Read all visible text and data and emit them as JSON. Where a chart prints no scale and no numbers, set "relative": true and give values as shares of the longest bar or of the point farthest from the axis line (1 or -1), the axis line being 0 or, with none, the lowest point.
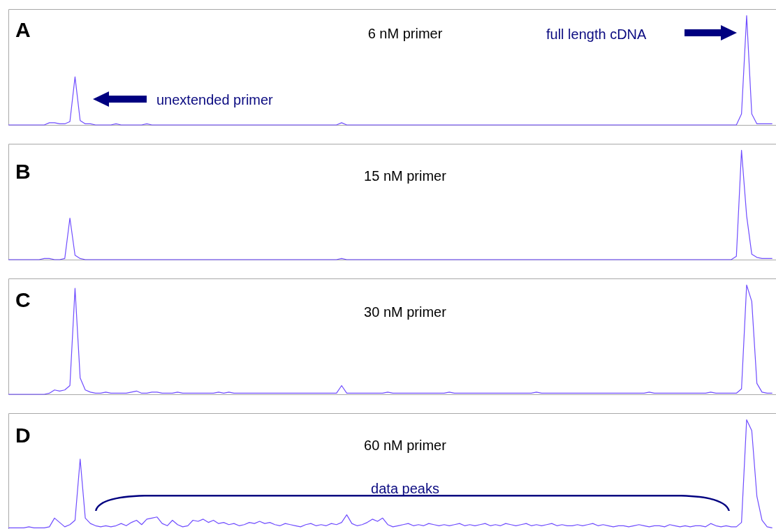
{
  "chart_data": [
    {
      "type": "line",
      "title": "A",
      "subtitle": "6 nM primer",
      "relative": true,
      "tick_labels": false,
      "annotations": [
        "unextended primer",
        "full length cDNA"
      ],
      "categories": [
        null,
        null,
        null,
        null,
        null,
        null,
        null,
        null,
        null,
        null,
        null,
        null,
        null,
        null,
        null,
        null,
        null,
        null,
        null,
        null,
        null,
        null,
        null,
        null,
        null,
        null,
        null,
        null,
        null,
        null,
        null,
        null,
        null,
        null,
        null,
        null,
        null,
        null,
        null,
        null,
        null,
        null,
        null,
        null,
        null,
        null,
        null,
        null,
        null,
        null,
        null,
        null,
        null,
        null,
        null,
        null,
        null,
        null,
        null,
        null,
        null,
        null,
        null,
        null,
        null,
        null,
        null,
        null,
        null,
        null,
        null,
        null,
        null,
        null,
        null,
        null,
        null,
        null,
        null,
        null,
        null,
        null,
        null,
        null,
        null,
        null,
        null,
        null,
        null,
        null,
        null,
        null,
        null,
        null,
        null,
        null,
        null,
        null,
        null,
        null,
        null,
        null,
        null,
        null,
        null,
        null,
        null,
        null,
        null,
        null,
        null,
        null,
        null,
        null,
        null,
        null,
        null,
        null,
        null,
        null,
        null,
        null,
        null,
        null,
        null,
        null,
        null,
        null,
        null,
        null,
        null,
        null,
        null,
        null,
        null,
        null,
        null,
        null,
        null,
        null,
        null,
        null,
        null,
        null,
        null,
        null,
        null,
        null,
        null,
        null
      ],
      "series": [
        {
          "color": "#6f4dff",
          "values": [
            0,
            0,
            0,
            0,
            0,
            0,
            0,
            0,
            0.02,
            0.02,
            0.01,
            0.01,
            0.03,
            0.44,
            0.04,
            0.01,
            0.01,
            0,
            0,
            0,
            0,
            0.01,
            0,
            0,
            0,
            0,
            0,
            0.01,
            0,
            0,
            0,
            0,
            0,
            0,
            0,
            0,
            0,
            0,
            0,
            0,
            0,
            0,
            0,
            0,
            0,
            0,
            0,
            0,
            0,
            0,
            0,
            0,
            0,
            0,
            0,
            0,
            0,
            0,
            0,
            0,
            0,
            0,
            0,
            0,
            0,
            0.02,
            0,
            0,
            0,
            0,
            0,
            0,
            0,
            0,
            0,
            0,
            0,
            0,
            0,
            0,
            0,
            0,
            0,
            0,
            0,
            0,
            0,
            0,
            0,
            0,
            0,
            0,
            0,
            0,
            0,
            0,
            0,
            0,
            0,
            0,
            0,
            0,
            0,
            0,
            0,
            0,
            0,
            0,
            0,
            0,
            0,
            0,
            0,
            0,
            0,
            0,
            0,
            0,
            0,
            0,
            0,
            0,
            0,
            0,
            0,
            0,
            0,
            0,
            0,
            0,
            0,
            0,
            0,
            0,
            0,
            0,
            0,
            0,
            0,
            0,
            0,
            0,
            0,
            0.1,
            1,
            0.1,
            0.01,
            0.01,
            0.01,
            0.01
          ]
        }
      ]
    },
    {
      "type": "line",
      "title": "B",
      "subtitle": "15 nM primer",
      "relative": true,
      "tick_labels": false,
      "categories": [
        null,
        null,
        null,
        null,
        null,
        null,
        null,
        null,
        null,
        null,
        null,
        null,
        null,
        null,
        null,
        null,
        null,
        null,
        null,
        null,
        null,
        null,
        null,
        null,
        null,
        null,
        null,
        null,
        null,
        null,
        null,
        null,
        null,
        null,
        null,
        null,
        null,
        null,
        null,
        null,
        null,
        null,
        null,
        null,
        null,
        null,
        null,
        null,
        null,
        null,
        null,
        null,
        null,
        null,
        null,
        null,
        null,
        null,
        null,
        null,
        null,
        null,
        null,
        null,
        null,
        null,
        null,
        null,
        null,
        null,
        null,
        null,
        null,
        null,
        null,
        null,
        null,
        null,
        null,
        null,
        null,
        null,
        null,
        null,
        null,
        null,
        null,
        null,
        null,
        null,
        null,
        null,
        null,
        null,
        null,
        null,
        null,
        null,
        null,
        null,
        null,
        null,
        null,
        null,
        null,
        null,
        null,
        null,
        null,
        null,
        null,
        null,
        null,
        null,
        null,
        null,
        null,
        null,
        null,
        null,
        null,
        null,
        null,
        null,
        null,
        null,
        null,
        null,
        null,
        null,
        null,
        null,
        null,
        null,
        null,
        null,
        null,
        null,
        null,
        null,
        null,
        null,
        null,
        null,
        null,
        null,
        null,
        null,
        null,
        null
      ],
      "series": [
        {
          "color": "#6f4dff",
          "values": [
            0,
            0,
            0,
            0,
            0,
            0,
            0,
            0.01,
            0.01,
            0,
            0,
            0.01,
            0.38,
            0.04,
            0.01,
            0,
            0,
            0,
            0,
            0,
            0,
            0,
            0,
            0,
            0,
            0,
            0,
            0,
            0,
            0,
            0,
            0,
            0,
            0,
            0,
            0,
            0,
            0,
            0,
            0,
            0,
            0,
            0,
            0,
            0,
            0,
            0,
            0,
            0,
            0,
            0,
            0,
            0,
            0,
            0,
            0,
            0,
            0,
            0,
            0,
            0,
            0,
            0,
            0,
            0,
            0.01,
            0,
            0,
            0,
            0,
            0,
            0,
            0,
            0,
            0,
            0,
            0,
            0,
            0,
            0,
            0,
            0,
            0,
            0,
            0,
            0,
            0,
            0,
            0,
            0,
            0,
            0,
            0,
            0,
            0,
            0,
            0,
            0,
            0,
            0,
            0,
            0,
            0,
            0,
            0,
            0,
            0,
            0,
            0,
            0,
            0,
            0,
            0,
            0,
            0,
            0,
            0,
            0,
            0,
            0,
            0,
            0,
            0,
            0,
            0,
            0,
            0,
            0,
            0,
            0,
            0,
            0,
            0,
            0,
            0,
            0,
            0,
            0,
            0,
            0,
            0,
            0,
            0.03,
            1,
            0.4,
            0.05,
            0.02,
            0.01,
            0.01,
            0.01
          ]
        }
      ]
    },
    {
      "type": "line",
      "title": "C",
      "subtitle": "30 nM primer",
      "relative": true,
      "tick_labels": false,
      "categories": [
        null,
        null,
        null,
        null,
        null,
        null,
        null,
        null,
        null,
        null,
        null,
        null,
        null,
        null,
        null,
        null,
        null,
        null,
        null,
        null,
        null,
        null,
        null,
        null,
        null,
        null,
        null,
        null,
        null,
        null,
        null,
        null,
        null,
        null,
        null,
        null,
        null,
        null,
        null,
        null,
        null,
        null,
        null,
        null,
        null,
        null,
        null,
        null,
        null,
        null,
        null,
        null,
        null,
        null,
        null,
        null,
        null,
        null,
        null,
        null,
        null,
        null,
        null,
        null,
        null,
        null,
        null,
        null,
        null,
        null,
        null,
        null,
        null,
        null,
        null,
        null,
        null,
        null,
        null,
        null,
        null,
        null,
        null,
        null,
        null,
        null,
        null,
        null,
        null,
        null,
        null,
        null,
        null,
        null,
        null,
        null,
        null,
        null,
        null,
        null,
        null,
        null,
        null,
        null,
        null,
        null,
        null,
        null,
        null,
        null,
        null,
        null,
        null,
        null,
        null,
        null,
        null,
        null,
        null,
        null,
        null,
        null,
        null,
        null,
        null,
        null,
        null,
        null,
        null,
        null,
        null,
        null,
        null,
        null,
        null,
        null,
        null,
        null,
        null,
        null,
        null,
        null,
        null,
        null,
        null,
        null,
        null,
        null,
        null,
        null
      ],
      "series": [
        {
          "color": "#6f4dff",
          "values": [
            0,
            0,
            0,
            0,
            0,
            0,
            0,
            0,
            0.01,
            0.04,
            0.03,
            0.04,
            0.08,
            0.97,
            0.15,
            0.04,
            0.02,
            0.01,
            0.01,
            0.02,
            0.01,
            0.01,
            0.01,
            0.01,
            0.02,
            0.03,
            0.01,
            0.01,
            0.02,
            0.02,
            0.01,
            0.01,
            0.01,
            0.02,
            0.01,
            0.01,
            0.01,
            0.01,
            0.01,
            0.01,
            0.01,
            0.02,
            0.01,
            0.02,
            0.01,
            0.01,
            0.01,
            0.01,
            0.01,
            0.01,
            0.01,
            0.01,
            0.01,
            0.01,
            0.01,
            0.01,
            0.01,
            0.01,
            0.01,
            0.01,
            0.01,
            0.01,
            0.01,
            0.01,
            0.01,
            0.08,
            0.01,
            0.01,
            0.01,
            0.01,
            0.01,
            0.01,
            0.01,
            0.01,
            0.02,
            0.01,
            0.01,
            0.01,
            0.01,
            0.01,
            0.01,
            0.01,
            0.01,
            0.01,
            0.01,
            0.01,
            0.02,
            0.01,
            0.01,
            0.01,
            0.01,
            0.01,
            0.01,
            0.01,
            0.01,
            0.01,
            0.01,
            0.01,
            0.01,
            0.01,
            0.01,
            0.01,
            0.01,
            0.02,
            0.01,
            0.01,
            0.01,
            0.01,
            0.01,
            0.01,
            0.01,
            0.01,
            0.01,
            0.01,
            0.01,
            0.01,
            0.01,
            0.01,
            0.01,
            0.01,
            0.01,
            0.01,
            0.01,
            0.01,
            0.01,
            0.02,
            0.01,
            0.01,
            0.01,
            0.01,
            0.01,
            0.01,
            0.01,
            0.01,
            0.01,
            0.01,
            0.01,
            0.02,
            0.01,
            0.01,
            0.01,
            0.01,
            0.01,
            0.05,
            1,
            0.85,
            0.1,
            0.02,
            0.01,
            0.01
          ]
        }
      ]
    },
    {
      "type": "line",
      "title": "D",
      "subtitle": "60 nM primer",
      "relative": true,
      "tick_labels": false,
      "annotations": [
        "data peaks"
      ],
      "categories": [
        null,
        null,
        null,
        null,
        null,
        null,
        null,
        null,
        null,
        null,
        null,
        null,
        null,
        null,
        null,
        null,
        null,
        null,
        null,
        null,
        null,
        null,
        null,
        null,
        null,
        null,
        null,
        null,
        null,
        null,
        null,
        null,
        null,
        null,
        null,
        null,
        null,
        null,
        null,
        null,
        null,
        null,
        null,
        null,
        null,
        null,
        null,
        null,
        null,
        null,
        null,
        null,
        null,
        null,
        null,
        null,
        null,
        null,
        null,
        null,
        null,
        null,
        null,
        null,
        null,
        null,
        null,
        null,
        null,
        null,
        null,
        null,
        null,
        null,
        null,
        null,
        null,
        null,
        null,
        null,
        null,
        null,
        null,
        null,
        null,
        null,
        null,
        null,
        null,
        null,
        null,
        null,
        null,
        null,
        null,
        null,
        null,
        null,
        null,
        null,
        null,
        null,
        null,
        null,
        null,
        null,
        null,
        null,
        null,
        null,
        null,
        null,
        null,
        null,
        null,
        null,
        null,
        null,
        null,
        null,
        null,
        null,
        null,
        null,
        null,
        null,
        null,
        null,
        null,
        null,
        null,
        null,
        null,
        null,
        null,
        null,
        null,
        null,
        null,
        null,
        null,
        null,
        null,
        null,
        null,
        null,
        null,
        null,
        null,
        null
      ],
      "series": [
        {
          "color": "#6f4dff",
          "values": [
            0.01,
            0.01,
            0.01,
            0.01,
            0.02,
            0.01,
            0.01,
            0.01,
            0.02,
            0.1,
            0.06,
            0.02,
            0.04,
            0.08,
            0.64,
            0.1,
            0.05,
            0.03,
            0.02,
            0.03,
            0.02,
            0.03,
            0.05,
            0.03,
            0.06,
            0.08,
            0.04,
            0.09,
            0.1,
            0.11,
            0.05,
            0.03,
            0.08,
            0.04,
            0.02,
            0.03,
            0.08,
            0.07,
            0.09,
            0.06,
            0.08,
            0.05,
            0.06,
            0.04,
            0.05,
            0.03,
            0.04,
            0.06,
            0.05,
            0.07,
            0.05,
            0.06,
            0.04,
            0.03,
            0.05,
            0.04,
            0.03,
            0.02,
            0.04,
            0.05,
            0.03,
            0.04,
            0.03,
            0.05,
            0.04,
            0.06,
            0.13,
            0.05,
            0.03,
            0.04,
            0.06,
            0.09,
            0.07,
            0.1,
            0.04,
            0.02,
            0.03,
            0.04,
            0.05,
            0.03,
            0.04,
            0.03,
            0.05,
            0.04,
            0.03,
            0.04,
            0.03,
            0.04,
            0.05,
            0.03,
            0.04,
            0.03,
            0.04,
            0.05,
            0.03,
            0.04,
            0.03,
            0.05,
            0.04,
            0.03,
            0.04,
            0.05,
            0.03,
            0.04,
            0.03,
            0.04,
            0.05,
            0.03,
            0.04,
            0.03,
            0.03,
            0.04,
            0.03,
            0.04,
            0.05,
            0.03,
            0.04,
            0.03,
            0.02,
            0.03,
            0.03,
            0.02,
            0.03,
            0.04,
            0.03,
            0.02,
            0.03,
            0.03,
            0.02,
            0.04,
            0.03,
            0.02,
            0.03,
            0.02,
            0.03,
            0.03,
            0.02,
            0.05,
            0.03,
            0.02,
            0.03,
            0.02,
            0.02,
            0.06,
            1,
            0.9,
            0.3,
            0.08,
            0.02,
            0.01
          ]
        }
      ]
    }
  ]
}
